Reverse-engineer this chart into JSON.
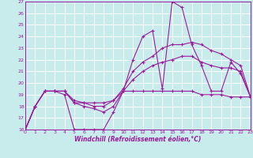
{
  "xlabel": "Windchill (Refroidissement éolien,°C)",
  "xlim": [
    0,
    23
  ],
  "ylim": [
    16,
    27
  ],
  "xticks": [
    0,
    1,
    2,
    3,
    4,
    5,
    6,
    7,
    8,
    9,
    10,
    11,
    12,
    13,
    14,
    15,
    16,
    17,
    18,
    19,
    20,
    21,
    22,
    23
  ],
  "yticks": [
    16,
    17,
    18,
    19,
    20,
    21,
    22,
    23,
    24,
    25,
    26,
    27
  ],
  "bg_color": "#c8ecec",
  "grid_color": "#ffffff",
  "line_color": "#9b1b9b",
  "line1": [
    16.0,
    18.0,
    19.3,
    19.3,
    19.0,
    16.0,
    16.0,
    16.0,
    16.0,
    17.5,
    19.3,
    22.0,
    24.0,
    24.5,
    19.5,
    27.0,
    26.5,
    23.3,
    21.5,
    19.3,
    19.3,
    21.8,
    20.8,
    18.8
  ],
  "line2": [
    16.0,
    18.0,
    19.3,
    19.3,
    19.3,
    18.5,
    18.3,
    18.0,
    18.0,
    18.5,
    19.5,
    21.0,
    21.8,
    22.3,
    23.0,
    23.3,
    23.3,
    23.5,
    23.3,
    22.8,
    22.5,
    22.0,
    21.5,
    18.8
  ],
  "line3": [
    16.0,
    18.0,
    19.3,
    19.3,
    19.3,
    18.3,
    18.0,
    17.8,
    17.5,
    18.0,
    19.3,
    20.3,
    21.0,
    21.5,
    21.8,
    22.0,
    22.3,
    22.3,
    21.8,
    21.5,
    21.3,
    21.3,
    21.0,
    18.8
  ],
  "line4": [
    16.0,
    18.0,
    19.3,
    19.3,
    19.3,
    18.3,
    18.3,
    18.3,
    18.3,
    18.5,
    19.3,
    19.3,
    19.3,
    19.3,
    19.3,
    19.3,
    19.3,
    19.3,
    19.0,
    19.0,
    19.0,
    18.8,
    18.8,
    18.8
  ]
}
